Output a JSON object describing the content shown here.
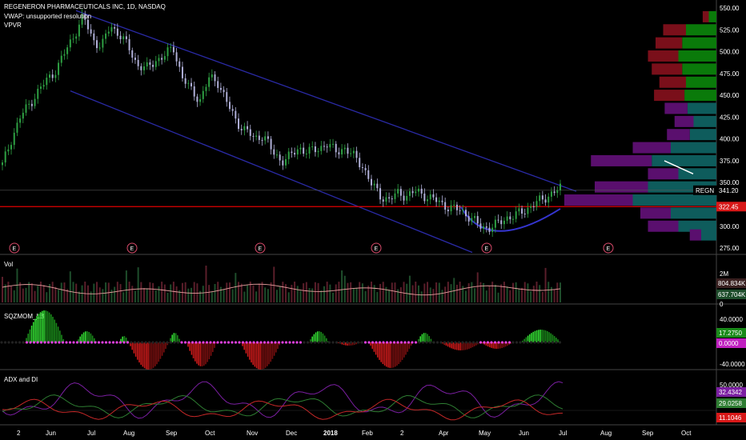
{
  "header": {
    "title": "REGENERON PHARMACEUTICALS INC, 1D, NASDAQ",
    "vwap": "VWAP: unsupported resolution",
    "vpvr": "VPVR"
  },
  "price_axis": [
    "550.00",
    "525.00",
    "500.00",
    "475.00",
    "450.00",
    "425.00",
    "400.00",
    "375.00",
    "350.00",
    "325.00",
    "300.00",
    "275.00"
  ],
  "x_axis": [
    "2",
    "Jun",
    "Jul",
    "Aug",
    "Sep",
    "Oct",
    "Nov",
    "Dec",
    "2018",
    "Feb",
    "2",
    "Apr",
    "May",
    "Jun",
    "Jul",
    "Aug",
    "Sep",
    "Oct"
  ],
  "tags": {
    "symbol": "REGN",
    "last_price": "341.20",
    "line_price": "322.45",
    "vol_ma": "804.834K",
    "vol_last": "637.704K",
    "sqz_val": "17.2750",
    "sqz_zero": "0.0000",
    "adx_1": "32.4342",
    "adx_2": "29.0258",
    "adx_3": "11.1046"
  },
  "panes": {
    "vol": {
      "title": "Vol",
      "ticks": [
        "2M",
        "0"
      ]
    },
    "sqz": {
      "title": "SQZMOM_LB",
      "ticks": [
        "40.0000",
        "-40.0000"
      ]
    },
    "adx": {
      "title": "ADX and DI",
      "ticks": [
        "50.0000"
      ]
    }
  },
  "earnings_marker": "E",
  "colors": {
    "channel": "#2a2aa6",
    "support": "#e00000",
    "up": "#2ea043",
    "down": "#c62828",
    "vpvr_teal": "#0e5c5c",
    "vpvr_purple": "#5a0f6e",
    "vpvr_green": "#0a7a0a",
    "vpvr_red": "#7a0f1a",
    "vol_ma": "#e8a0a0",
    "sqz_magenta": "#e040e0",
    "adx": "#7b1fa2",
    "di_plus": "#2e7d32",
    "di_minus": "#c62828"
  },
  "chart_data": {
    "type": "candlestick",
    "title": "REGENERON PHARMACEUTICALS INC, 1D, NASDAQ",
    "ylim": [
      270,
      555
    ],
    "x": [
      "2",
      "Jun",
      "Jul",
      "Aug",
      "Sep",
      "Oct",
      "Nov",
      "Dec",
      "2018",
      "Feb",
      "2",
      "Apr",
      "May",
      "Jun",
      "Jul"
    ],
    "close_path": [
      370,
      400,
      425,
      440,
      455,
      468,
      480,
      500,
      520,
      540,
      515,
      505,
      530,
      520,
      505,
      485,
      480,
      490,
      495,
      505,
      470,
      455,
      445,
      470,
      465,
      440,
      420,
      410,
      400,
      405,
      385,
      375,
      380,
      390,
      385,
      388,
      395,
      385,
      390,
      380,
      370,
      348,
      335,
      330,
      338,
      335,
      340,
      335,
      330,
      325,
      320,
      318,
      310,
      300,
      298,
      302,
      310,
      312,
      318,
      325,
      330,
      338,
      343
    ],
    "support_line": 322.45,
    "last_price": 341.2,
    "vpvr_profile": [
      {
        "price": 540,
        "up": 10,
        "down": 8
      },
      {
        "price": 525,
        "up": 40,
        "down": 30
      },
      {
        "price": 510,
        "up": 45,
        "down": 35
      },
      {
        "price": 495,
        "up": 50,
        "down": 40
      },
      {
        "price": 480,
        "up": 45,
        "down": 40
      },
      {
        "price": 465,
        "up": 40,
        "down": 35
      },
      {
        "price": 450,
        "up": 42,
        "down": 40
      },
      {
        "price": 435,
        "up": 38,
        "down": 30
      },
      {
        "price": 420,
        "up": 30,
        "down": 25
      },
      {
        "price": 405,
        "up": 35,
        "down": 30
      },
      {
        "price": 390,
        "up": 60,
        "down": 50
      },
      {
        "price": 375,
        "up": 85,
        "down": 80
      },
      {
        "price": 360,
        "up": 50,
        "down": 40
      },
      {
        "price": 345,
        "up": 90,
        "down": 70
      },
      {
        "price": 330,
        "up": 110,
        "down": 90
      },
      {
        "price": 315,
        "up": 60,
        "down": 40
      },
      {
        "price": 300,
        "up": 50,
        "down": 40
      },
      {
        "price": 290,
        "up": 20,
        "down": 15
      }
    ]
  }
}
